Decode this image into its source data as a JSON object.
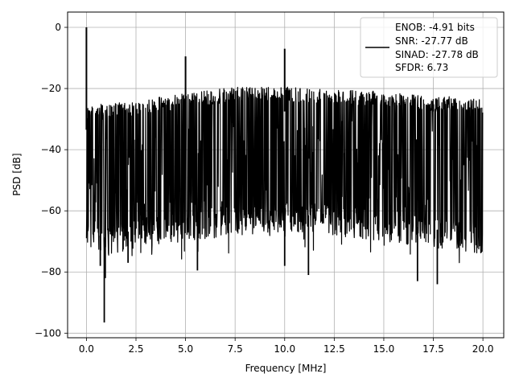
{
  "chart_data": {
    "type": "line",
    "title": "",
    "xlabel": "Frequency [MHz]",
    "ylabel": "PSD [dB]",
    "xlim": [
      -0.95,
      21.05
    ],
    "ylim": [
      -101.5,
      5
    ],
    "xticks": [
      0.0,
      2.5,
      5.0,
      7.5,
      10.0,
      12.5,
      15.0,
      17.5,
      20.0
    ],
    "xtick_labels": [
      "0.0",
      "2.5",
      "5.0",
      "7.5",
      "10.0",
      "12.5",
      "15.0",
      "17.5",
      "20.0"
    ],
    "yticks": [
      0,
      -20,
      -40,
      -60,
      -80,
      -100
    ],
    "ytick_labels": [
      "0",
      "−20",
      "−40",
      "−60",
      "−80",
      "−100"
    ],
    "grid": true,
    "legend": {
      "placement": "top-right",
      "lines": [
        "ENOB: -4.91 bits",
        "SNR: -27.77 dB",
        "SINAD: -27.78 dB",
        "SFDR: 6.73"
      ]
    },
    "series": [
      {
        "color": "#000000",
        "noise_floor": {
          "x": [
            0.0,
            1.0,
            2.5,
            5.0,
            7.5,
            10.0,
            12.5,
            15.0,
            17.5,
            20.0
          ],
          "upper": [
            -25.5,
            -25.0,
            -24.0,
            -21.5,
            -19.5,
            -19.5,
            -20.0,
            -21.0,
            -22.5,
            -23.0
          ],
          "lower": [
            -72,
            -75,
            -72,
            -70,
            -68,
            -67,
            -68,
            -70,
            -72,
            -74
          ]
        },
        "spikes": [
          {
            "x": 0.0,
            "y": 0.0
          },
          {
            "x": 5.0,
            "y": -9.5
          },
          {
            "x": 10.0,
            "y": -7.0
          }
        ],
        "dips": [
          {
            "x": 0.9,
            "y": -96.5
          },
          {
            "x": 0.7,
            "y": -78
          },
          {
            "x": 0.95,
            "y": -82
          },
          {
            "x": 2.1,
            "y": -77
          },
          {
            "x": 5.6,
            "y": -79.5
          },
          {
            "x": 10.0,
            "y": -78
          },
          {
            "x": 11.2,
            "y": -81
          },
          {
            "x": 16.7,
            "y": -83
          },
          {
            "x": 17.7,
            "y": -84
          }
        ]
      }
    ]
  }
}
